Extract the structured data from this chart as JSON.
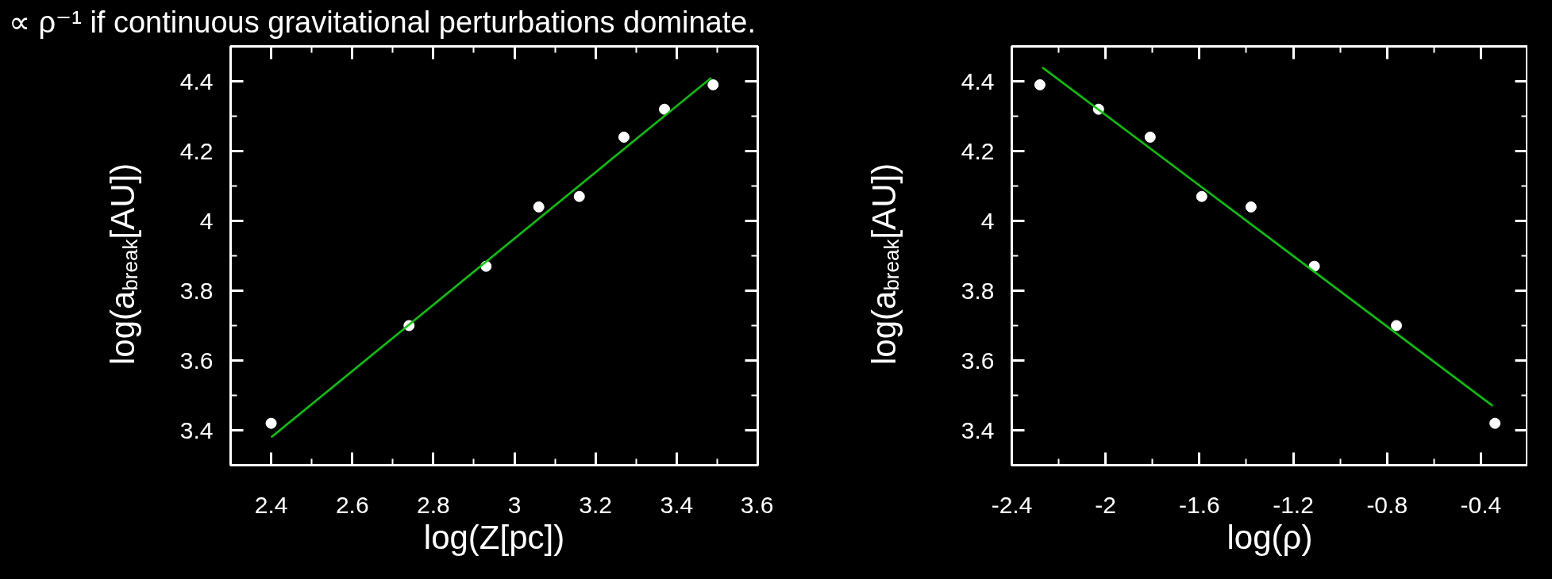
{
  "chart_data": [
    {
      "type": "scatter",
      "title": "∝ ρ⁻¹ if continuous gravitational perturbations dominate.",
      "xlabel": "log(Z[pc])",
      "ylabel": "log(a$_{break}$[AU])",
      "grid": false,
      "xlim": [
        2.3,
        3.6
      ],
      "ylim": [
        3.3,
        4.5
      ],
      "xticks": [
        2.4,
        2.6,
        2.8,
        3,
        3.2,
        3.4,
        3.6
      ],
      "yticks": [
        3.4,
        3.6,
        3.8,
        4,
        4.2,
        4.4
      ],
      "series": [
        {
          "marker": "circle",
          "color": "#ffffff",
          "x": [
            2.4,
            2.74,
            2.93,
            3.06,
            3.16,
            3.27,
            3.37,
            3.49
          ],
          "values": [
            3.42,
            3.7,
            3.87,
            4.04,
            4.07,
            4.24,
            4.32,
            4.39
          ]
        },
        {
          "type": "line",
          "color": "#00cc00",
          "x": [
            2.4,
            3.485
          ],
          "values": [
            3.38,
            4.41
          ]
        }
      ]
    },
    {
      "type": "scatter",
      "xlabel": "log(ρ)",
      "ylabel": "log(a$_{break}$[AU])",
      "grid": false,
      "xlim": [
        -2.4,
        -0.2
      ],
      "ylim": [
        3.3,
        4.5
      ],
      "xticks": [
        -2.4,
        -2,
        -1.6,
        -1.2,
        -0.8,
        -0.4
      ],
      "yticks": [
        3.4,
        3.6,
        3.8,
        4,
        4.2,
        4.4
      ],
      "series": [
        {
          "marker": "circle",
          "color": "#ffffff",
          "x": [
            -2.28,
            -2.03,
            -1.81,
            -1.59,
            -1.38,
            -1.11,
            -0.76,
            -0.34
          ],
          "values": [
            4.39,
            4.32,
            4.24,
            4.07,
            4.04,
            3.87,
            3.7,
            3.42
          ]
        },
        {
          "type": "line",
          "color": "#00cc00",
          "x": [
            -2.27,
            -0.35
          ],
          "values": [
            4.44,
            3.47
          ]
        }
      ]
    }
  ]
}
